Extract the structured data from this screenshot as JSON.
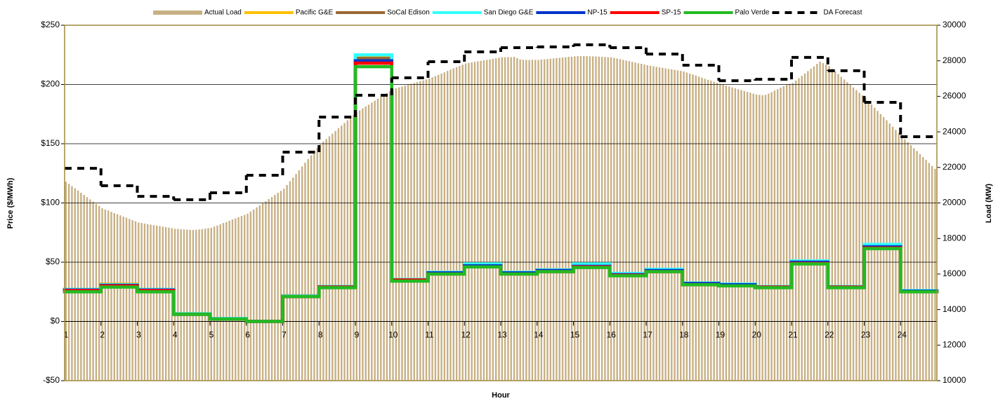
{
  "chart_data": {
    "type": "combo",
    "x_label": "Hour",
    "y_label": "Price ($/MWh)",
    "y2_label": "Load (MW)",
    "xlim": [
      1,
      25
    ],
    "xticks": [
      1,
      2,
      3,
      4,
      5,
      6,
      7,
      8,
      9,
      10,
      11,
      12,
      13,
      14,
      15,
      16,
      17,
      18,
      19,
      20,
      21,
      22,
      23,
      24
    ],
    "ylim": [
      -50,
      250
    ],
    "yticks": [
      {
        "value": -50,
        "label": "-$50"
      },
      {
        "value": 0,
        "label": "$0"
      },
      {
        "value": 50,
        "label": "$50"
      },
      {
        "value": 100,
        "label": "$100"
      },
      {
        "value": 150,
        "label": "$150"
      },
      {
        "value": 200,
        "label": "$200"
      },
      {
        "value": 250,
        "label": "$250"
      }
    ],
    "y2lim": [
      10000,
      30000
    ],
    "y2ticks": [
      10000,
      12000,
      14000,
      16000,
      18000,
      20000,
      22000,
      24000,
      26000,
      28000,
      30000
    ],
    "grid": true,
    "legend": "top",
    "series": [
      {
        "name": "Actual Load",
        "type": "bar",
        "axis": "y2",
        "color": "#c8b084",
        "values": [
          21200,
          21075,
          20950,
          20825,
          20700,
          20575,
          20450,
          20325,
          20200,
          20075,
          19950,
          19825,
          19700,
          19630,
          19570,
          19500,
          19430,
          19370,
          19300,
          19230,
          19170,
          19100,
          19030,
          18970,
          18900,
          18870,
          18840,
          18810,
          18780,
          18750,
          18730,
          18700,
          18670,
          18640,
          18610,
          18580,
          18550,
          18540,
          18520,
          18510,
          18500,
          18490,
          18480,
          18490,
          18510,
          18530,
          18550,
          18580,
          18600,
          18670,
          18730,
          18800,
          18870,
          18930,
          19000,
          19070,
          19130,
          19200,
          19270,
          19330,
          19400,
          19520,
          19630,
          19750,
          19870,
          19980,
          20100,
          20220,
          20330,
          20450,
          20570,
          20680,
          20800,
          21010,
          21220,
          21430,
          21630,
          21840,
          22050,
          22260,
          22470,
          22680,
          22880,
          23090,
          23300,
          23450,
          23600,
          23750,
          23900,
          24050,
          24200,
          24350,
          24500,
          24650,
          24800,
          24950,
          25100,
          25210,
          25320,
          25430,
          25530,
          25640,
          25750,
          25860,
          25970,
          26080,
          26180,
          26290,
          26400,
          26450,
          26500,
          26550,
          26600,
          26650,
          26700,
          26750,
          26800,
          26850,
          26900,
          26950,
          27000,
          27070,
          27140,
          27210,
          27280,
          27350,
          27430,
          27500,
          27570,
          27640,
          27710,
          27780,
          27850,
          27880,
          27910,
          27940,
          27970,
          28000,
          28030,
          28050,
          28080,
          28110,
          28140,
          28170,
          28200,
          28200,
          28210,
          28200,
          28220,
          28150,
          28080,
          28060,
          28050,
          28040,
          28060,
          28050,
          28050,
          28070,
          28080,
          28100,
          28120,
          28130,
          28150,
          28170,
          28180,
          28200,
          28220,
          28230,
          28250,
          28260,
          28260,
          28270,
          28260,
          28250,
          28250,
          28240,
          28230,
          28220,
          28210,
          28200,
          28200,
          28160,
          28130,
          28090,
          28050,
          28010,
          27980,
          27940,
          27900,
          27860,
          27830,
          27790,
          27750,
          27720,
          27690,
          27660,
          27630,
          27600,
          27570,
          27540,
          27520,
          27490,
          27460,
          27430,
          27400,
          27340,
          27280,
          27230,
          27170,
          27110,
          27050,
          26990,
          26930,
          26880,
          26820,
          26760,
          26700,
          26650,
          26600,
          26550,
          26500,
          26450,
          26400,
          26350,
          26300,
          26250,
          26200,
          26150,
          26100,
          26080,
          26060,
          26080,
          26150,
          26230,
          26320,
          26400,
          26490,
          26570,
          26650,
          26700,
          26750,
          26880,
          27020,
          27150,
          27280,
          27420,
          27550,
          27680,
          27820,
          27950,
          27870,
          27780,
          27700,
          27550,
          27400,
          27250,
          27100,
          26950,
          26800,
          26650,
          26500,
          26350,
          26200,
          26050,
          25900,
          25720,
          25540,
          25360,
          25180,
          25000,
          24830,
          24650,
          24470,
          24290,
          24110,
          23930,
          23750,
          23580,
          23420,
          23250,
          23080,
          22920,
          22750,
          22580,
          22420,
          22250,
          22080,
          21920
        ]
      },
      {
        "name": "Pacific G&E",
        "type": "step",
        "color": "#ffc000",
        "values": [
          27,
          31.5,
          27,
          6.5,
          2.5,
          0,
          21.5,
          29.5,
          224,
          35.5,
          41.5,
          48,
          41.5,
          43.5,
          48,
          40,
          43.5,
          32.5,
          31.5,
          29.5,
          51,
          29.5,
          64.5,
          26
        ]
      },
      {
        "name": "SoCal Edison",
        "type": "step",
        "color": "#996633",
        "values": [
          27,
          31,
          27,
          6.5,
          2.5,
          0,
          21.5,
          29.5,
          222,
          35,
          41,
          48,
          41,
          43,
          48,
          40,
          43.5,
          32,
          31,
          29,
          50.5,
          29,
          64,
          25.5
        ]
      },
      {
        "name": "San Diego G&E",
        "type": "step",
        "color": "#33ffff",
        "values": [
          27,
          31,
          27,
          6.5,
          2.5,
          0,
          21.5,
          29.5,
          225,
          35.5,
          41.5,
          48.5,
          41.5,
          43.5,
          48.5,
          40.5,
          44,
          32.5,
          31.5,
          29.5,
          51,
          29.5,
          65,
          26
        ]
      },
      {
        "name": "NP-15",
        "type": "step",
        "color": "#0033cc",
        "values": [
          26.5,
          30.5,
          26.5,
          6,
          2,
          0,
          21,
          29,
          220,
          35,
          41,
          47,
          41,
          43,
          46.5,
          39.5,
          43,
          32,
          31,
          29,
          50,
          29,
          63,
          25.5
        ]
      },
      {
        "name": "SP-15",
        "type": "step",
        "color": "#ff0000",
        "values": [
          26,
          30,
          26,
          6,
          2,
          0,
          21,
          29,
          218,
          35,
          40,
          46,
          40,
          42,
          46,
          39,
          42,
          31,
          30,
          29,
          49,
          29,
          62,
          25
        ]
      },
      {
        "name": "Palo Verde",
        "type": "step",
        "color": "#22bb22",
        "values": [
          25,
          29,
          25,
          6,
          2,
          0,
          21,
          28.5,
          215,
          34,
          40,
          46,
          40,
          42,
          45.5,
          38.5,
          42,
          31,
          30,
          28.5,
          48.5,
          28.5,
          61.5,
          25
        ]
      },
      {
        "name": "DA Forecast",
        "type": "step",
        "axis": "y2",
        "line_style": "dashed",
        "color": "#000000",
        "values": [
          21950,
          20970,
          20370,
          20180,
          20570,
          21560,
          22860,
          24830,
          26060,
          27040,
          27950,
          28500,
          28740,
          28780,
          28900,
          28740,
          28380,
          27750,
          26880,
          26960,
          28190,
          27440,
          25660,
          23730
        ]
      }
    ]
  }
}
